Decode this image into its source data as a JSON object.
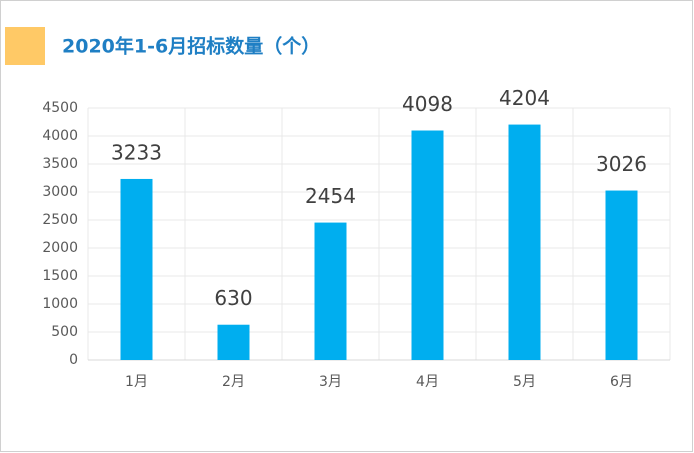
{
  "chart_data": {
    "type": "bar",
    "title": "2020年1-6月招标数量（个）",
    "categories": [
      "1月",
      "2月",
      "3月",
      "4月",
      "5月",
      "6月"
    ],
    "values": [
      3233,
      630,
      2454,
      4098,
      4204,
      3026
    ],
    "color": "#00aeef",
    "ylim": [
      0,
      4500
    ],
    "yticks": [
      0,
      500,
      1000,
      1500,
      2000,
      2500,
      3000,
      3500,
      4000,
      4500
    ],
    "grid": true
  }
}
